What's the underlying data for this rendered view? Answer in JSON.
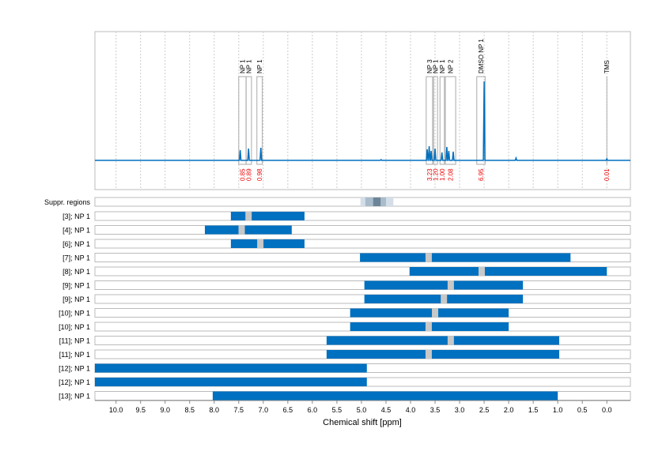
{
  "chart_data": {
    "type": "nmr-spectrum-with-regions",
    "xlabel": "Chemical shift [ppm]",
    "xlim": [
      10.43,
      -0.48
    ],
    "xticks": [
      10.0,
      9.5,
      9.0,
      8.5,
      8.0,
      7.5,
      7.0,
      6.5,
      6.0,
      5.5,
      5.0,
      4.5,
      4.0,
      3.5,
      3.0,
      2.5,
      2.0,
      1.5,
      1.0,
      0.5,
      0.0
    ],
    "grid": true,
    "color": "#0070c0",
    "peaks": [
      [
        7.47,
        0.13
      ],
      [
        7.3,
        0.15
      ],
      [
        7.05,
        0.16
      ],
      [
        3.66,
        0.14
      ],
      [
        3.62,
        0.18
      ],
      [
        3.58,
        0.12
      ],
      [
        3.5,
        0.15
      ],
      [
        3.36,
        0.1
      ],
      [
        3.26,
        0.17
      ],
      [
        3.22,
        0.12
      ],
      [
        3.13,
        0.11
      ],
      [
        2.5,
        1.0
      ],
      [
        0.0,
        0.02
      ],
      [
        1.85,
        0.03
      ],
      [
        4.6,
        0.01
      ]
    ],
    "multiplets": [
      {
        "label": "NP 1",
        "from": 7.5,
        "to": 7.35,
        "integral": "0.85"
      },
      {
        "label": "NP 1",
        "from": 7.35,
        "to": 7.24,
        "integral": "0.89"
      },
      {
        "label": "NP 1",
        "from": 7.13,
        "to": 7.02,
        "integral": "0.98"
      },
      {
        "label": "NP 3",
        "from": 3.68,
        "to": 3.55,
        "integral": "3.23"
      },
      {
        "label": "NP 1",
        "from": 3.53,
        "to": 3.45,
        "integral": "1.20"
      },
      {
        "label": "NP 1",
        "from": 3.4,
        "to": 3.31,
        "integral": "1.00"
      },
      {
        "label": "NP 2",
        "from": 3.29,
        "to": 3.08,
        "integral": "2.08"
      },
      {
        "label": "DMSO NP 1",
        "from": 2.65,
        "to": 2.48,
        "integral": "6.95"
      },
      {
        "label": "TMS",
        "from": 0.0,
        "to": 0.0,
        "integral": "0.01"
      }
    ],
    "suppressed": {
      "label": "Suppr. regions",
      "outer": [
        5.02,
        4.35
      ],
      "mid": [
        4.92,
        4.5
      ],
      "inner": [
        4.76,
        4.61
      ]
    },
    "regions": [
      {
        "label": "[3]; NP 1",
        "from": 7.66,
        "to": 6.16,
        "center": 7.3
      },
      {
        "label": "[4]; NP 1",
        "from": 8.19,
        "to": 6.42,
        "center": 7.44
      },
      {
        "label": "[6]; NP 1",
        "from": 7.66,
        "to": 6.16,
        "center": 7.06
      },
      {
        "label": "[7]; NP 1",
        "from": 5.03,
        "to": 0.74,
        "center": 3.63
      },
      {
        "label": "[8]; NP 1",
        "from": 4.02,
        "to": 0.0,
        "center": 2.55
      },
      {
        "label": "[9]; NP 1",
        "from": 4.94,
        "to": 1.71,
        "center": 3.18
      },
      {
        "label": "[9]; NP 1",
        "from": 4.94,
        "to": 1.71,
        "center": 3.32
      },
      {
        "label": "[10]; NP 1",
        "from": 5.23,
        "to": 2.0,
        "center": 3.5
      },
      {
        "label": "[10]; NP 1",
        "from": 5.23,
        "to": 2.0,
        "center": 3.63
      },
      {
        "label": "[11]; NP 1",
        "from": 5.71,
        "to": 0.97,
        "center": 3.18
      },
      {
        "label": "[11]; NP 1",
        "from": 5.71,
        "to": 0.97,
        "center": 3.63
      },
      {
        "label": "[12]; NP 1",
        "from": 10.43,
        "to": 4.89,
        "center": null
      },
      {
        "label": "[12]; NP 1",
        "from": 10.43,
        "to": 4.89,
        "center": null
      },
      {
        "label": "[13]; NP 1",
        "from": 8.03,
        "to": 1.0,
        "center": null
      }
    ]
  }
}
